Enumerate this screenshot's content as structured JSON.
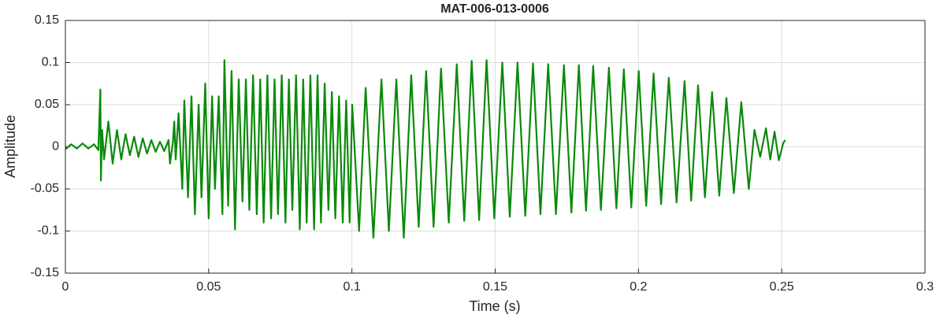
{
  "chart_data": {
    "type": "line",
    "title": "MAT-006-013-0006",
    "x_label": "Time (s)",
    "y_label": "Amplitude",
    "x": [
      0,
      0.002,
      0.004,
      0.006,
      0.008,
      0.01,
      0.0115,
      0.0122,
      0.0124,
      0.0128,
      0.0135,
      0.015,
      0.0165,
      0.018,
      0.0195,
      0.021,
      0.0225,
      0.024,
      0.0255,
      0.027,
      0.0285,
      0.03,
      0.0315,
      0.033,
      0.0345,
      0.036,
      0.0365,
      0.0375,
      0.038,
      0.0385,
      0.0395,
      0.0408,
      0.0415,
      0.0428,
      0.044,
      0.0452,
      0.0465,
      0.0475,
      0.0488,
      0.05,
      0.0512,
      0.0522,
      0.0535,
      0.0548,
      0.0555,
      0.0568,
      0.058,
      0.0592,
      0.0605,
      0.0618,
      0.063,
      0.0642,
      0.0655,
      0.0668,
      0.068,
      0.0692,
      0.0705,
      0.0718,
      0.073,
      0.0742,
      0.0755,
      0.0768,
      0.078,
      0.0792,
      0.0805,
      0.0818,
      0.083,
      0.0842,
      0.0855,
      0.0868,
      0.088,
      0.0892,
      0.0905,
      0.0918,
      0.093,
      0.0942,
      0.0955,
      0.0968,
      0.098,
      0.0992,
      0.1001,
      0.1025,
      0.1048,
      0.1075,
      0.1103,
      0.1129,
      0.1155,
      0.1181,
      0.1207,
      0.1233,
      0.1259,
      0.1285,
      0.1311,
      0.1338,
      0.1366,
      0.1392,
      0.1418,
      0.1444,
      0.147,
      0.1497,
      0.1525,
      0.1551,
      0.1578,
      0.1605,
      0.1632,
      0.1658,
      0.1685,
      0.1712,
      0.174,
      0.1766,
      0.1792,
      0.1817,
      0.1842,
      0.1869,
      0.1897,
      0.1923,
      0.1949,
      0.1975,
      0.2001,
      0.2027,
      0.2053,
      0.2079,
      0.2106,
      0.2133,
      0.2161,
      0.2184,
      0.2208,
      0.2232,
      0.2257,
      0.2282,
      0.2307,
      0.2333,
      0.2359,
      0.2385,
      0.2405,
      0.2425,
      0.2445,
      0.246,
      0.2475,
      0.249,
      0.2505,
      0.2512
    ],
    "series": [
      {
        "color": "#0a8a0a",
        "values": [
          -0.003,
          0.003,
          -0.002,
          0.004,
          -0.002,
          0.003,
          -0.004,
          0.068,
          -0.04,
          0.02,
          -0.015,
          0.03,
          -0.02,
          0.02,
          -0.015,
          0.015,
          -0.01,
          0.012,
          -0.012,
          0.01,
          -0.008,
          0.008,
          -0.006,
          0.006,
          -0.005,
          0.008,
          -0.02,
          0.005,
          0.03,
          -0.015,
          0.04,
          -0.05,
          0.055,
          -0.06,
          0.06,
          -0.08,
          0.05,
          -0.06,
          0.075,
          -0.085,
          0.06,
          -0.05,
          0.06,
          -0.08,
          0.103,
          -0.07,
          0.09,
          -0.098,
          0.08,
          -0.065,
          0.08,
          -0.075,
          0.085,
          -0.08,
          0.08,
          -0.09,
          0.085,
          -0.085,
          0.08,
          -0.08,
          0.085,
          -0.09,
          0.08,
          -0.075,
          0.085,
          -0.098,
          0.08,
          -0.09,
          0.085,
          -0.098,
          0.085,
          -0.09,
          0.075,
          -0.075,
          0.065,
          -0.085,
          0.06,
          -0.09,
          0.055,
          -0.09,
          0.05,
          -0.1,
          0.07,
          -0.108,
          0.08,
          -0.1,
          0.08,
          -0.108,
          0.085,
          -0.095,
          0.09,
          -0.095,
          0.093,
          -0.09,
          0.098,
          -0.088,
          0.102,
          -0.087,
          0.103,
          -0.085,
          0.1,
          -0.083,
          0.1,
          -0.082,
          0.099,
          -0.08,
          0.098,
          -0.08,
          0.097,
          -0.078,
          0.097,
          -0.076,
          0.096,
          -0.075,
          0.094,
          -0.073,
          0.092,
          -0.072,
          0.09,
          -0.07,
          0.087,
          -0.068,
          0.082,
          -0.066,
          0.078,
          -0.064,
          0.073,
          -0.06,
          0.065,
          -0.058,
          0.058,
          -0.055,
          0.053,
          -0.05,
          0.02,
          -0.012,
          0.022,
          -0.015,
          0.018,
          -0.016,
          0.004,
          0.008
        ]
      }
    ],
    "xlim": [
      0,
      0.3
    ],
    "xticks": [
      0,
      0.05,
      0.1,
      0.15,
      0.2,
      0.25,
      0.3
    ],
    "ylim": [
      -0.15,
      0.15
    ],
    "yticks": [
      -0.15,
      -0.1,
      -0.05,
      0,
      0.05,
      0.1,
      0.15
    ],
    "grid": true
  }
}
